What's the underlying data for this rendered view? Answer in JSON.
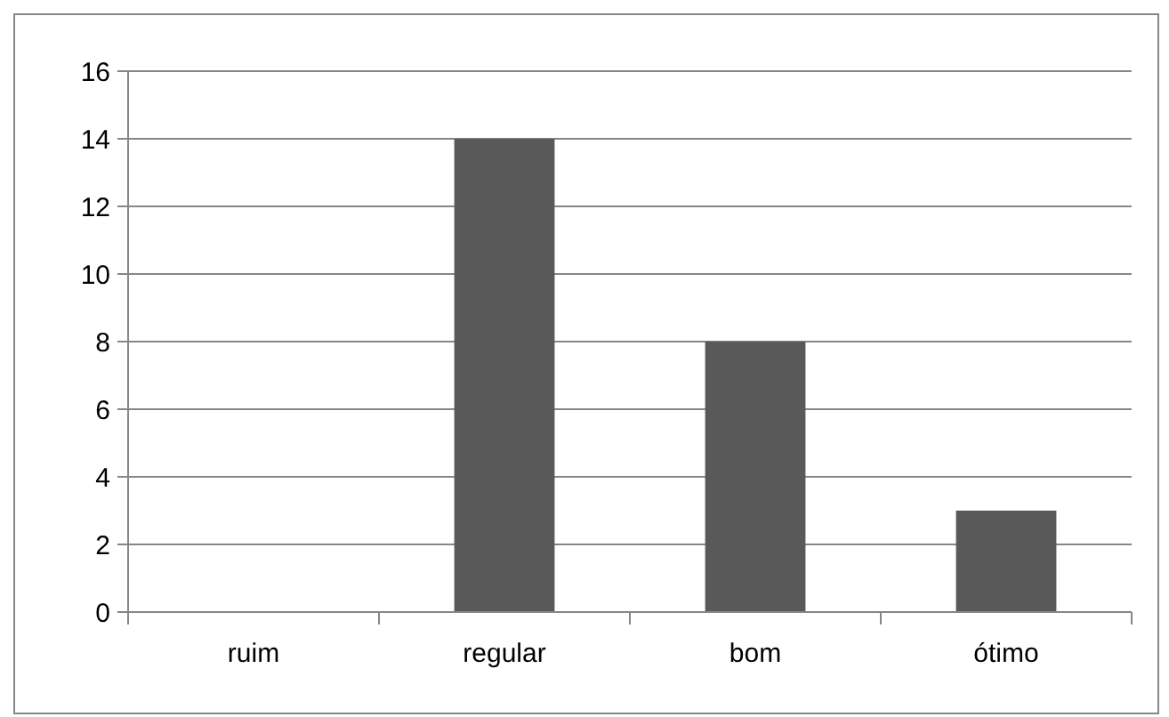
{
  "chart_data": {
    "type": "bar",
    "categories": [
      "ruim",
      "regular",
      "bom",
      "ótimo"
    ],
    "values": [
      0,
      14,
      8,
      3
    ],
    "color": "#595959",
    "ylim": [
      0,
      16
    ],
    "yticks": [
      0,
      2,
      4,
      6,
      8,
      10,
      12,
      14,
      16
    ],
    "grid": "y"
  }
}
